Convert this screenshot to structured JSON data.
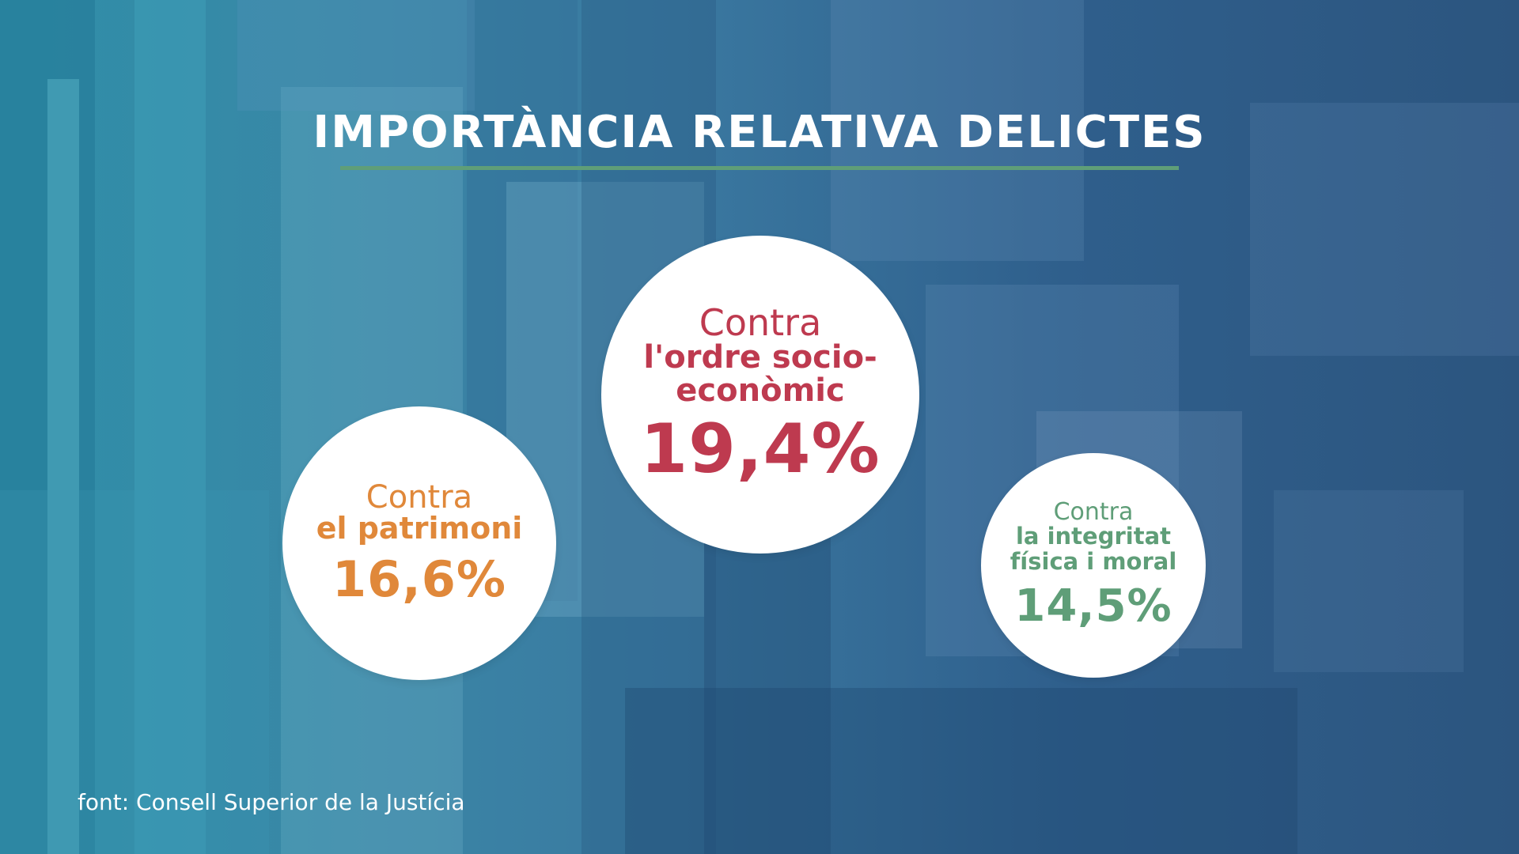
{
  "title": "IMPORTÀNCIA RELATIVA DELICTES",
  "source": "font: Consell Superior de la Justícia",
  "colors": {
    "title_rule": "#5f9e78",
    "ordre": "#be3a4f",
    "patrimoni": "#e0883a",
    "integritat": "#5f9e78"
  },
  "chart_data": {
    "type": "bubble",
    "title": "IMPORTÀNCIA RELATIVA DELICTES",
    "unit": "%",
    "items": [
      {
        "prefix": "Contra",
        "category_lines": [
          "l'ordre socio-",
          "econòmic"
        ],
        "value": 19.4,
        "value_label": "19,4%",
        "color": "#be3a4f"
      },
      {
        "prefix": "Contra",
        "category_lines": [
          "el patrimoni"
        ],
        "value": 16.6,
        "value_label": "16,6%",
        "color": "#e0883a"
      },
      {
        "prefix": "Contra",
        "category_lines": [
          "la integritat",
          "física i moral"
        ],
        "value": 14.5,
        "value_label": "14,5%",
        "color": "#5f9e78"
      }
    ]
  }
}
